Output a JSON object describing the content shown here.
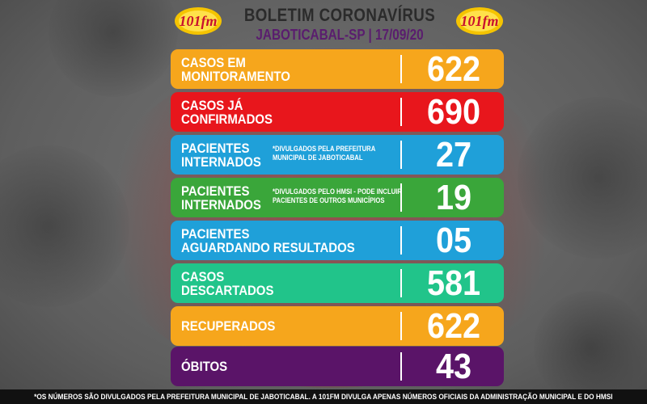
{
  "header": {
    "title": "BOLETIM CORONAVÍRUS",
    "subtitle": "JABOTICABAL-SP | 17/09/20",
    "logo_text": "101fm"
  },
  "colors": {
    "orange": "#f6a61c",
    "red": "#e8161c",
    "blue": "#1fa0d9",
    "green": "#3aa63a",
    "teal": "#21c48a",
    "purple": "#5a1468"
  },
  "rows": [
    {
      "label_line1": "CASOS EM",
      "label_line2": "MONITORAMENTO",
      "note": "",
      "value": "622",
      "color": "#f6a61c"
    },
    {
      "label_line1": "CASOS JÁ",
      "label_line2": "CONFIRMADOS",
      "note": "",
      "value": "690",
      "color": "#e8161c"
    },
    {
      "label_line1": "PACIENTES",
      "label_line2": "INTERNADOS",
      "note": "*DIVULGADOS PELA PREFEITURA MUNICIPAL DE JABOTICABAL",
      "value": "27",
      "color": "#1fa0d9"
    },
    {
      "label_line1": "PACIENTES",
      "label_line2": "INTERNADOS",
      "note": "*DIVULGADOS PELO HMSI - PODE INCLUIR PACIENTES DE OUTROS MUNICÍPIOS",
      "value": "19",
      "color": "#3aa63a"
    },
    {
      "label_line1": "PACIENTES",
      "label_line2": "AGUARDANDO RESULTADOS",
      "note": "",
      "value": "05",
      "color": "#1fa0d9"
    },
    {
      "label_line1": "CASOS",
      "label_line2": "DESCARTADOS",
      "note": "",
      "value": "581",
      "color": "#21c48a"
    },
    {
      "label_line1": "RECUPERADOS",
      "label_line2": "",
      "note": "",
      "value": "622",
      "color": "#f6a61c"
    },
    {
      "label_line1": "ÓBITOS",
      "label_line2": "",
      "note": "",
      "value": "43",
      "color": "#5a1468"
    }
  ],
  "footer": {
    "text": "*OS NÚMEROS SÃO DIVULGADOS PELA PREFEITURA MUNICIPAL DE JABOTICABAL. A 101FM DIVULGA APENAS NÚMEROS OFICIAIS DA ADMINISTRAÇÃO MUNICIPAL E DO HMSI"
  }
}
